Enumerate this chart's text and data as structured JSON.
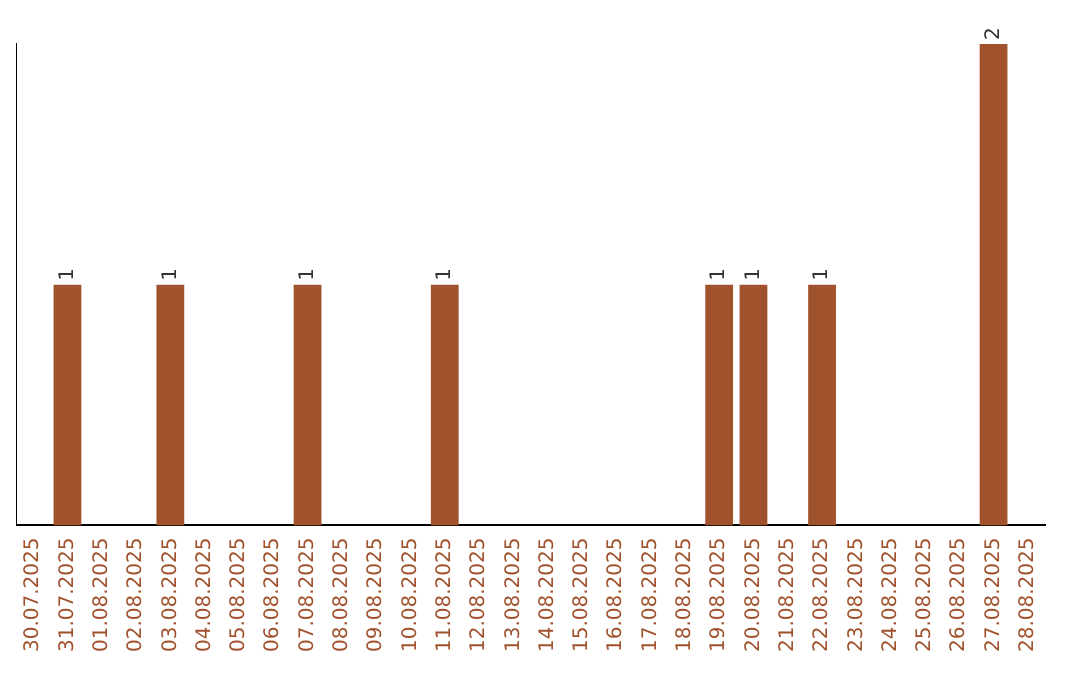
{
  "chart_data": {
    "type": "bar",
    "categories": [
      "30.07.2025",
      "31.07.2025",
      "01.08.2025",
      "02.08.2025",
      "03.08.2025",
      "04.08.2025",
      "05.08.2025",
      "06.08.2025",
      "07.08.2025",
      "08.08.2025",
      "09.08.2025",
      "10.08.2025",
      "11.08.2025",
      "12.08.2025",
      "13.08.2025",
      "14.08.2025",
      "15.08.2025",
      "16.08.2025",
      "17.08.2025",
      "18.08.2025",
      "19.08.2025",
      "20.08.2025",
      "21.08.2025",
      "22.08.2025",
      "23.08.2025",
      "24.08.2025",
      "25.08.2025",
      "26.08.2025",
      "27.08.2025",
      "28.08.2025"
    ],
    "values": [
      0,
      1,
      0,
      0,
      1,
      0,
      0,
      0,
      1,
      0,
      0,
      0,
      1,
      0,
      0,
      0,
      0,
      0,
      0,
      0,
      1,
      1,
      0,
      1,
      0,
      0,
      0,
      0,
      2,
      0
    ],
    "value_labels": [
      null,
      "1",
      null,
      null,
      "1",
      null,
      null,
      null,
      "1",
      null,
      null,
      null,
      "1",
      null,
      null,
      null,
      null,
      null,
      null,
      null,
      "1",
      "1",
      null,
      "1",
      null,
      null,
      null,
      null,
      "2",
      null
    ],
    "color": "#a0522d",
    "tick_labels": "x",
    "grid": false,
    "legend": false
  }
}
